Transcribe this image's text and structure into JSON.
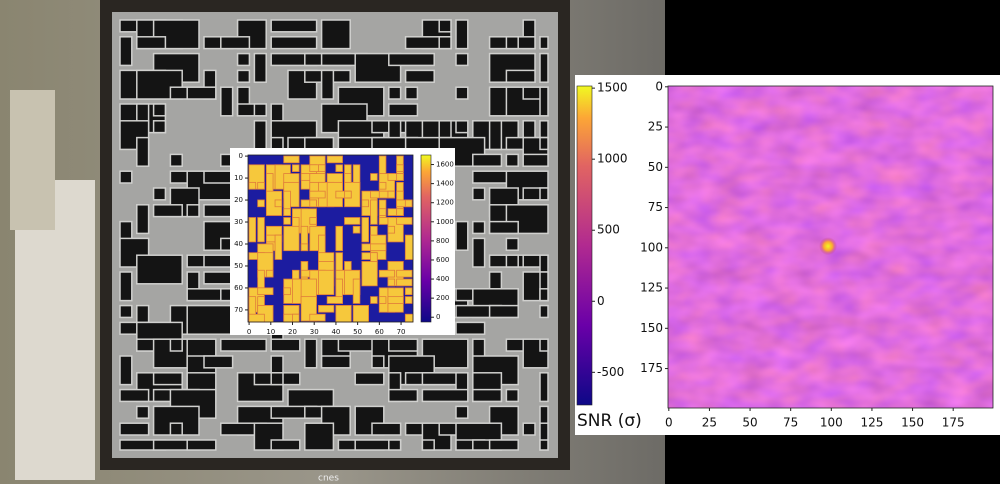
{
  "photo": {
    "logo": "cnes"
  },
  "chart_data": [
    {
      "type": "heatmap",
      "xlim": [
        -0.5,
        75.5
      ],
      "xticks": [
        0,
        10,
        20,
        30,
        40,
        50,
        60,
        70
      ],
      "ylim": [
        75.5,
        -0.5
      ],
      "yticks": [
        0,
        10,
        20,
        30,
        40,
        50,
        60,
        70
      ],
      "colorbar": {
        "lim": [
          -50,
          1700
        ],
        "ticks": [
          0,
          200,
          400,
          600,
          800,
          1000,
          1200,
          1400,
          1600
        ]
      }
    },
    {
      "type": "heatmap",
      "xlim": [
        -0.5,
        199.5
      ],
      "xticks": [
        0,
        25,
        50,
        75,
        100,
        125,
        150,
        175
      ],
      "ylim": [
        199.5,
        -0.5
      ],
      "yticks": [
        0,
        25,
        50,
        75,
        100,
        125,
        150,
        175
      ],
      "colorbar": {
        "lim": [
          -730,
          1515
        ],
        "ticks": [
          -500,
          0,
          500,
          1000,
          1500
        ],
        "label": "SNR (σ)"
      },
      "peak": {
        "x": 98,
        "y": 99
      }
    }
  ]
}
